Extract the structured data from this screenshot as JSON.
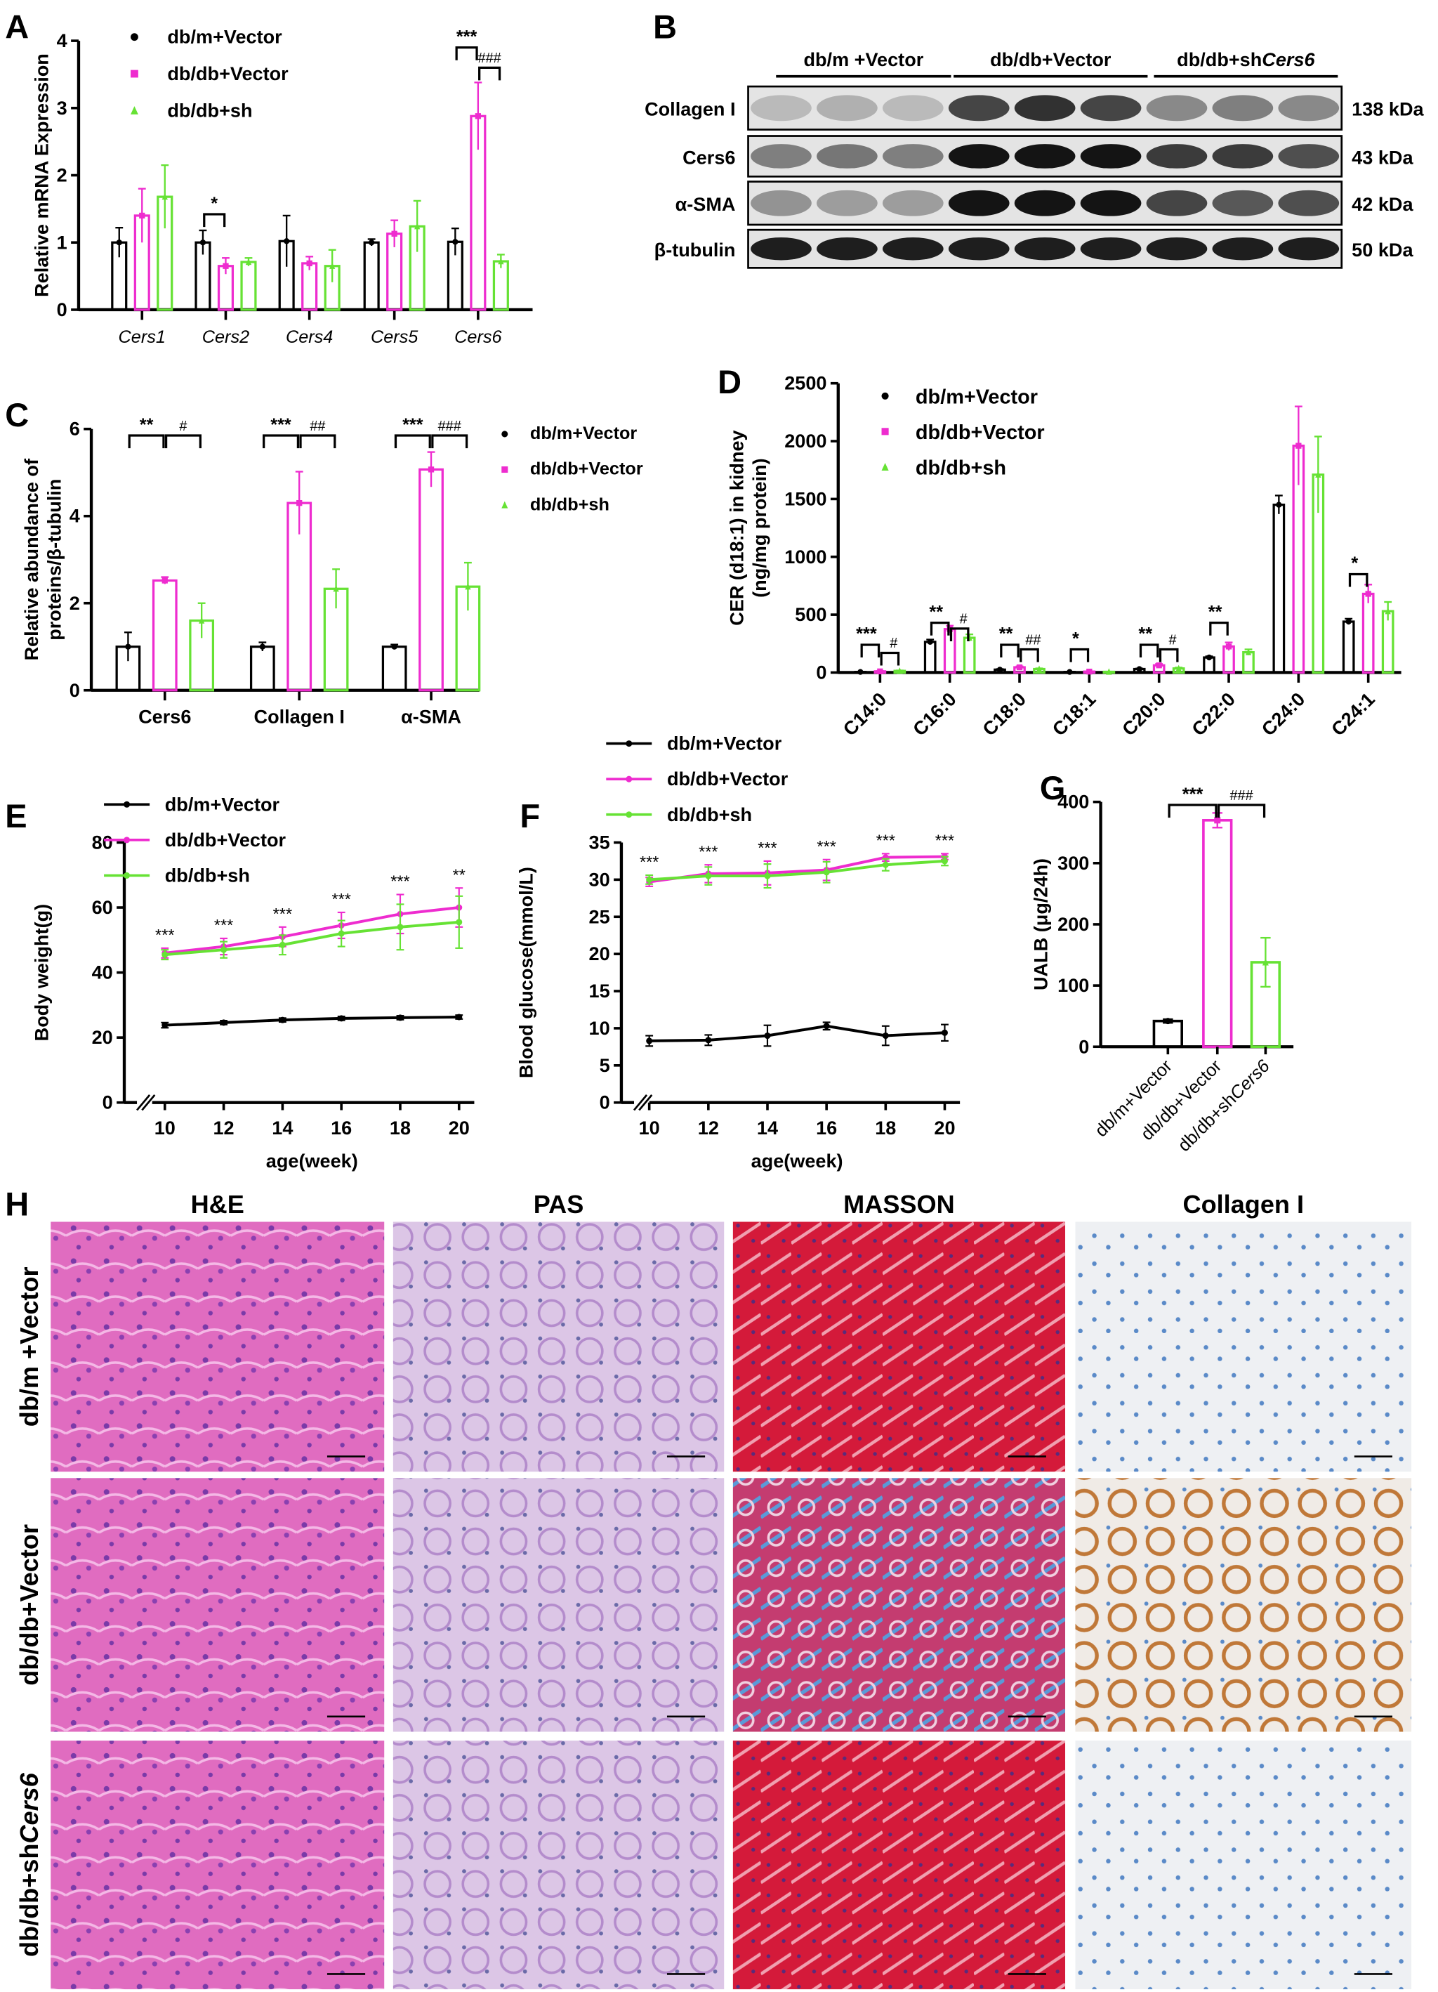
{
  "colors": {
    "dbm": "#000000",
    "dbdb": "#ee2ccf",
    "sh": "#66e234"
  },
  "legend": [
    {
      "label": "db/m+Vector",
      "label_italic": "",
      "marker": "circle"
    },
    {
      "label": "db/db+Vector",
      "label_italic": "",
      "marker": "square"
    },
    {
      "label": "db/db+sh",
      "label_italic": "Cers6",
      "marker": "triangle"
    }
  ],
  "panel_letters": [
    "A",
    "B",
    "C",
    "D",
    "E",
    "F",
    "G",
    "H"
  ],
  "chart_data": [
    {
      "id": "A",
      "type": "bar",
      "ylabel": "Relative mRNA Expression",
      "ylim": [
        0,
        4
      ],
      "yticks": [
        0,
        1,
        2,
        3,
        4
      ],
      "categories": [
        "Cers1",
        "Cers2",
        "Cers4",
        "Cers5",
        "Cers6"
      ],
      "series": [
        {
          "name": "db/m+Vector",
          "values": [
            1.0,
            1.0,
            1.02,
            1.0,
            1.01
          ],
          "sd": [
            0.22,
            0.18,
            0.38,
            0.05,
            0.2
          ]
        },
        {
          "name": "db/db+Vector",
          "values": [
            1.4,
            0.65,
            0.69,
            1.13,
            2.88
          ],
          "sd": [
            0.4,
            0.12,
            0.1,
            0.2,
            0.5
          ]
        },
        {
          "name": "db/db+shCers6",
          "values": [
            1.68,
            0.71,
            0.65,
            1.24,
            0.72
          ],
          "sd": [
            0.47,
            0.06,
            0.24,
            0.38,
            0.1
          ]
        }
      ],
      "significance": [
        {
          "cat": 1,
          "from": 0,
          "to": 1,
          "level": 1.42,
          "text": "*"
        },
        {
          "cat": 4,
          "from": 0,
          "to": 1,
          "level": 3.9,
          "text": "***"
        },
        {
          "cat": 4,
          "from": 1,
          "to": 2,
          "level": 3.6,
          "text": "###"
        }
      ]
    },
    {
      "id": "C",
      "type": "bar",
      "ylabel": "Relative abundance of",
      "ylabel2": "proteins/β-tubulin",
      "ylim": [
        0,
        6
      ],
      "yticks": [
        0,
        2,
        4,
        6
      ],
      "categories": [
        "Cers6",
        "Collagen I",
        "α-SMA"
      ],
      "series": [
        {
          "name": "db/m+Vector",
          "values": [
            1.0,
            1.0,
            1.0
          ],
          "sd": [
            0.33,
            0.1,
            0.05
          ]
        },
        {
          "name": "db/db+Vector",
          "values": [
            2.52,
            4.3,
            5.07
          ],
          "sd": [
            0.08,
            0.72,
            0.4
          ]
        },
        {
          "name": "db/db+shCers6",
          "values": [
            1.6,
            2.33,
            2.38
          ],
          "sd": [
            0.4,
            0.45,
            0.55
          ]
        }
      ],
      "significance": [
        {
          "cat": 0,
          "from": 0,
          "to": 1,
          "level": 5.85,
          "text": "**"
        },
        {
          "cat": 0,
          "from": 1,
          "to": 2,
          "level": 5.85,
          "text": "#"
        },
        {
          "cat": 1,
          "from": 0,
          "to": 1,
          "level": 5.85,
          "text": "***"
        },
        {
          "cat": 1,
          "from": 1,
          "to": 2,
          "level": 5.85,
          "text": "##"
        },
        {
          "cat": 2,
          "from": 0,
          "to": 1,
          "level": 5.85,
          "text": "***"
        },
        {
          "cat": 2,
          "from": 1,
          "to": 2,
          "level": 5.85,
          "text": "###"
        }
      ]
    },
    {
      "id": "D",
      "type": "bar",
      "ylabel": "CER (d18:1) in kidney",
      "ylabel2": "(ng/mg protein)",
      "ylim": [
        0,
        2500
      ],
      "yticks": [
        0,
        500,
        1000,
        1500,
        2000,
        2500
      ],
      "categories": [
        "C14:0",
        "C16:0",
        "C18:0",
        "C18:1",
        "C20:0",
        "C22:0",
        "C24:0",
        "C24:1"
      ],
      "series": [
        {
          "name": "db/m+Vector",
          "values": [
            5,
            265,
            25,
            5,
            30,
            130,
            1450,
            440
          ],
          "sd": [
            2,
            20,
            5,
            2,
            5,
            10,
            80,
            25
          ]
        },
        {
          "name": "db/db+Vector",
          "values": [
            10,
            375,
            45,
            8,
            62,
            225,
            1960,
            680
          ],
          "sd": [
            3,
            30,
            8,
            3,
            12,
            35,
            340,
            80
          ]
        },
        {
          "name": "db/db+shCers6",
          "values": [
            14,
            300,
            30,
            6,
            35,
            175,
            1710,
            530
          ],
          "sd": [
            4,
            30,
            6,
            2,
            8,
            25,
            330,
            80
          ]
        }
      ],
      "significance": [
        {
          "cat": 0,
          "from": 0,
          "to": 1,
          "level": 240,
          "text": "***"
        },
        {
          "cat": 0,
          "from": 1,
          "to": 2,
          "level": 170,
          "text": "#"
        },
        {
          "cat": 1,
          "from": 0,
          "to": 1,
          "level": 430,
          "text": "**"
        },
        {
          "cat": 1,
          "from": 1,
          "to": 2,
          "level": 380,
          "text": "#"
        },
        {
          "cat": 2,
          "from": 0,
          "to": 1,
          "level": 240,
          "text": "**"
        },
        {
          "cat": 2,
          "from": 1,
          "to": 2,
          "level": 200,
          "text": "##"
        },
        {
          "cat": 3,
          "from": 0,
          "to": 1,
          "level": 200,
          "text": "*"
        },
        {
          "cat": 4,
          "from": 0,
          "to": 1,
          "level": 240,
          "text": "**"
        },
        {
          "cat": 4,
          "from": 1,
          "to": 2,
          "level": 200,
          "text": "#"
        },
        {
          "cat": 5,
          "from": 0,
          "to": 1,
          "level": 430,
          "text": "**"
        },
        {
          "cat": 7,
          "from": 0,
          "to": 1,
          "level": 850,
          "text": "*"
        }
      ]
    },
    {
      "id": "E",
      "type": "line",
      "xlabel": "age(week)",
      "ylabel": "Body weight(g)",
      "ylim": [
        0,
        80
      ],
      "yticks": [
        0,
        20,
        40,
        60,
        80
      ],
      "x": [
        10,
        12,
        14,
        16,
        18,
        20
      ],
      "series": [
        {
          "name": "db/m+Vector",
          "values": [
            23.8,
            24.6,
            25.4,
            25.9,
            26.1,
            26.3
          ],
          "sd": [
            0.8,
            0.6,
            0.6,
            0.6,
            0.6,
            0.6
          ]
        },
        {
          "name": "db/db+Vector",
          "values": [
            46,
            48,
            51,
            54.5,
            58,
            60
          ],
          "sd": [
            1.5,
            2.5,
            3,
            4,
            6,
            6
          ]
        },
        {
          "name": "db/db+shCers6",
          "values": [
            45.5,
            47,
            48.5,
            52,
            54,
            55.5
          ],
          "sd": [
            1.5,
            2.5,
            3,
            4,
            7,
            8
          ]
        }
      ],
      "stars": [
        "***",
        "***",
        "***",
        "***",
        "***",
        "**"
      ]
    },
    {
      "id": "F",
      "type": "line",
      "xlabel": "age(week)",
      "ylabel": "Blood glucose(mmol/L)",
      "ylim": [
        0,
        35
      ],
      "yticks": [
        0,
        5,
        10,
        15,
        20,
        25,
        30,
        35
      ],
      "x": [
        10,
        12,
        14,
        16,
        18,
        20
      ],
      "series": [
        {
          "name": "db/m+Vector",
          "values": [
            8.3,
            8.4,
            9.0,
            10.3,
            9.0,
            9.4
          ],
          "sd": [
            0.7,
            0.7,
            1.4,
            0.5,
            1.3,
            1.1
          ]
        },
        {
          "name": "db/db+Vector",
          "values": [
            29.7,
            30.8,
            30.9,
            31.3,
            33.0,
            33.1
          ],
          "sd": [
            0.6,
            1.2,
            1.6,
            1.4,
            0.5,
            0.4
          ]
        },
        {
          "name": "db/db+shCers6",
          "values": [
            30.0,
            30.5,
            30.5,
            31.0,
            32.0,
            32.5
          ],
          "sd": [
            0.6,
            1.2,
            1.6,
            1.4,
            0.8,
            0.6
          ]
        }
      ],
      "stars": [
        "***",
        "***",
        "***",
        "***",
        "***",
        "***"
      ]
    },
    {
      "id": "G",
      "type": "bar",
      "ylabel": "UALB (μg/24h)",
      "ylim": [
        0,
        400
      ],
      "yticks": [
        0,
        100,
        200,
        300,
        400
      ],
      "categories": [
        {
          "label": "db/m+Vector",
          "italic": ""
        },
        {
          "label": "db/db+Vector",
          "italic": ""
        },
        {
          "label": "db/db+sh",
          "italic": "Cers6"
        }
      ],
      "values": [
        42,
        370,
        138
      ],
      "sd": [
        3,
        12,
        40
      ],
      "significance": [
        {
          "from": 0,
          "to": 1,
          "text": "***",
          "level": 395
        },
        {
          "from": 1,
          "to": 2,
          "text": "###",
          "level": 395
        }
      ]
    }
  ],
  "blot": {
    "groups": [
      {
        "label": "db/m +Vector",
        "italic": ""
      },
      {
        "label": "db/db+Vector",
        "italic": ""
      },
      {
        "label": "db/db+sh",
        "italic": "Cers6"
      }
    ],
    "rows": [
      {
        "protein": "Collagen I",
        "size": "138 kDa",
        "intensity": [
          0.15,
          0.2,
          0.15,
          0.75,
          0.85,
          0.75,
          0.4,
          0.45,
          0.4
        ]
      },
      {
        "protein": "Cers6",
        "size": "43 kDa",
        "intensity": [
          0.45,
          0.5,
          0.45,
          1,
          1,
          1,
          0.8,
          0.8,
          0.7
        ]
      },
      {
        "protein": "α-SMA",
        "size": "42 kDa",
        "intensity": [
          0.35,
          0.3,
          0.3,
          1,
          1,
          1,
          0.75,
          0.65,
          0.7
        ]
      },
      {
        "protein": "β-tubulin",
        "size": "50 kDa",
        "intensity": [
          0.95,
          0.95,
          0.95,
          0.95,
          0.95,
          0.95,
          0.95,
          0.95,
          0.95
        ]
      }
    ]
  },
  "histology": {
    "columns": [
      "H&E",
      "PAS",
      "MASSON",
      "Collagen I"
    ],
    "rows": [
      {
        "label": "db/m +Vector",
        "italic": ""
      },
      {
        "label": "db/db+Vector",
        "italic": ""
      },
      {
        "label": "db/db+sh",
        "italic": "Cers6"
      }
    ]
  }
}
